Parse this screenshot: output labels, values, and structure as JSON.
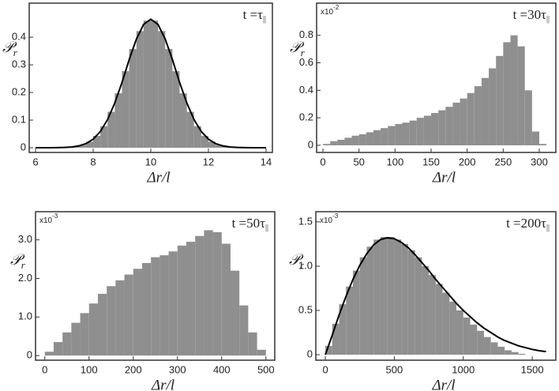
{
  "chart_data": [
    {
      "type": "histogram",
      "annotation": {
        "text": "t =τ",
        "sub": "||"
      },
      "xlabel": "Δr/l",
      "ylabel": {
        "text": "𝒫",
        "sub": "r"
      },
      "bins": [
        6,
        6.25,
        6.5,
        6.75,
        7,
        7.25,
        7.5,
        7.75,
        8,
        8.25,
        8.5,
        8.75,
        9,
        9.25,
        9.5,
        9.75,
        10,
        10.25,
        10.5,
        10.75,
        11,
        11.25,
        11.5,
        11.75,
        12,
        12.25,
        12.5,
        12.75,
        13,
        13.25,
        13.5,
        13.75,
        14
      ],
      "values": [
        0,
        0.0001,
        0.0002,
        0.0007,
        0.0018,
        0.0045,
        0.01,
        0.022,
        0.043,
        0.078,
        0.13,
        0.197,
        0.277,
        0.357,
        0.422,
        0.46,
        0.46,
        0.422,
        0.357,
        0.277,
        0.197,
        0.13,
        0.078,
        0.043,
        0.022,
        0.01,
        0.0045,
        0.0018,
        0.0007,
        0.0002,
        0.0001,
        0
      ],
      "color": "#8f8f8f",
      "curve": {
        "color": "#000000",
        "x": [
          6,
          6.25,
          6.5,
          6.75,
          7,
          7.25,
          7.5,
          7.75,
          8,
          8.25,
          8.5,
          8.75,
          9,
          9.25,
          9.5,
          9.75,
          10,
          10.25,
          10.5,
          10.75,
          11,
          11.25,
          11.5,
          11.75,
          12,
          12.25,
          12.5,
          12.75,
          13,
          13.25,
          13.5,
          13.75,
          14
        ],
        "values": [
          0,
          0,
          0.0001,
          0.0004,
          0.0011,
          0.0028,
          0.0068,
          0.015,
          0.031,
          0.059,
          0.102,
          0.162,
          0.236,
          0.319,
          0.393,
          0.446,
          0.465,
          0.446,
          0.393,
          0.319,
          0.236,
          0.162,
          0.102,
          0.059,
          0.031,
          0.015,
          0.0068,
          0.0028,
          0.0011,
          0.0004,
          0.0001,
          0,
          0
        ]
      },
      "xlim": [
        5.78,
        14.22
      ],
      "ylim": [
        -0.017,
        0.523
      ],
      "xticks": [
        6,
        8,
        10,
        12,
        14
      ],
      "yticks": [
        0,
        0.1,
        0.2,
        0.3,
        0.4
      ]
    },
    {
      "type": "histogram",
      "annotation": {
        "text": "t =30τ",
        "sub": "||"
      },
      "xlabel": "Δr/l",
      "ylabel": {
        "text": "𝒫",
        "sub": "r"
      },
      "multiplier": {
        "text": "x10",
        "exp": "-2"
      },
      "bins": [
        0,
        10,
        20,
        30,
        40,
        50,
        60,
        70,
        80,
        90,
        100,
        110,
        120,
        130,
        140,
        150,
        160,
        170,
        180,
        190,
        200,
        210,
        220,
        230,
        240,
        250,
        260,
        270,
        280,
        290,
        300,
        310
      ],
      "values": [
        0.01,
        0.03,
        0.04,
        0.055,
        0.07,
        0.08,
        0.095,
        0.11,
        0.125,
        0.14,
        0.155,
        0.165,
        0.18,
        0.2,
        0.215,
        0.235,
        0.255,
        0.28,
        0.31,
        0.34,
        0.38,
        0.43,
        0.49,
        0.56,
        0.65,
        0.75,
        0.8,
        0.72,
        0.4,
        0.1,
        0.01
      ],
      "color": "#8f8f8f",
      "xlim": [
        -8.8,
        323
      ],
      "ylim": [
        -0.052,
        1.034
      ],
      "xticks": [
        0,
        50,
        100,
        150,
        200,
        250,
        300
      ],
      "yticks": [
        0,
        0.2,
        0.4,
        0.6,
        0.8
      ]
    },
    {
      "type": "histogram",
      "annotation": {
        "text": "t =50τ",
        "sub": "||"
      },
      "xlabel": "Δr/l",
      "ylabel": {
        "text": "𝒫",
        "sub": "r"
      },
      "multiplier": {
        "text": "x10",
        "exp": "-3"
      },
      "bins": [
        0,
        20,
        40,
        60,
        80,
        100,
        120,
        140,
        160,
        180,
        200,
        220,
        240,
        260,
        280,
        300,
        320,
        340,
        360,
        380,
        400,
        420,
        440,
        460,
        480,
        500
      ],
      "values": [
        0.1,
        0.35,
        0.6,
        0.85,
        1.1,
        1.35,
        1.6,
        1.8,
        1.95,
        2.1,
        2.25,
        2.4,
        2.55,
        2.6,
        2.7,
        2.85,
        2.95,
        3.1,
        3.25,
        3.2,
        2.9,
        2.2,
        1.3,
        0.6,
        0.15
      ],
      "color": "#8f8f8f",
      "xlim": [
        -21,
        520
      ],
      "ylim": [
        -0.12,
        3.73
      ],
      "xticks": [
        0,
        100,
        200,
        300,
        400,
        500
      ],
      "yticks": [
        0,
        {
          "value": 1,
          "label": "1.0"
        },
        {
          "value": 2,
          "label": "2.0"
        },
        {
          "value": 3,
          "label": "3.0"
        }
      ]
    },
    {
      "type": "histogram",
      "annotation": {
        "text": "t =200τ",
        "sub": "||"
      },
      "xlabel": "Δr/l",
      "ylabel": {
        "text": "𝒫",
        "sub": "r"
      },
      "multiplier": {
        "text": "x10",
        "exp": "-3"
      },
      "bins": [
        0,
        50,
        100,
        150,
        200,
        250,
        300,
        350,
        400,
        450,
        500,
        550,
        600,
        650,
        700,
        750,
        800,
        850,
        900,
        950,
        1000,
        1050,
        1100,
        1150,
        1200,
        1250,
        1300,
        1350,
        1400,
        1450,
        1500,
        1550,
        1600
      ],
      "values": [
        0.1,
        0.35,
        0.57,
        0.77,
        0.95,
        1.1,
        1.22,
        1.3,
        1.33,
        1.33,
        1.3,
        1.25,
        1.18,
        1.1,
        1.0,
        0.9,
        0.8,
        0.7,
        0.6,
        0.5,
        0.42,
        0.34,
        0.27,
        0.2,
        0.14,
        0.09,
        0.05,
        0.03,
        0.01,
        0,
        0,
        0
      ],
      "color": "#8f8f8f",
      "curve": {
        "color": "#000000",
        "x": [
          0,
          50,
          100,
          150,
          200,
          250,
          300,
          350,
          400,
          450,
          500,
          550,
          600,
          650,
          700,
          750,
          800,
          850,
          900,
          950,
          1000,
          1050,
          1100,
          1150,
          1200,
          1250,
          1300,
          1350,
          1400,
          1450,
          1500,
          1550,
          1600
        ],
        "values": [
          0,
          0.22,
          0.45,
          0.66,
          0.85,
          1.01,
          1.14,
          1.24,
          1.3,
          1.32,
          1.31,
          1.27,
          1.21,
          1.13,
          1.04,
          0.95,
          0.85,
          0.76,
          0.67,
          0.58,
          0.5,
          0.43,
          0.36,
          0.3,
          0.25,
          0.2,
          0.16,
          0.13,
          0.1,
          0.08,
          0.06,
          0.045,
          0.035
        ]
      },
      "xlim": [
        -69,
        1671
      ],
      "ylim": [
        -0.062,
        1.615
      ],
      "xticks": [
        0,
        500,
        1000,
        1500
      ],
      "yticks": [
        0,
        0.5,
        {
          "value": 1,
          "label": "1.0"
        },
        1.5
      ]
    }
  ]
}
